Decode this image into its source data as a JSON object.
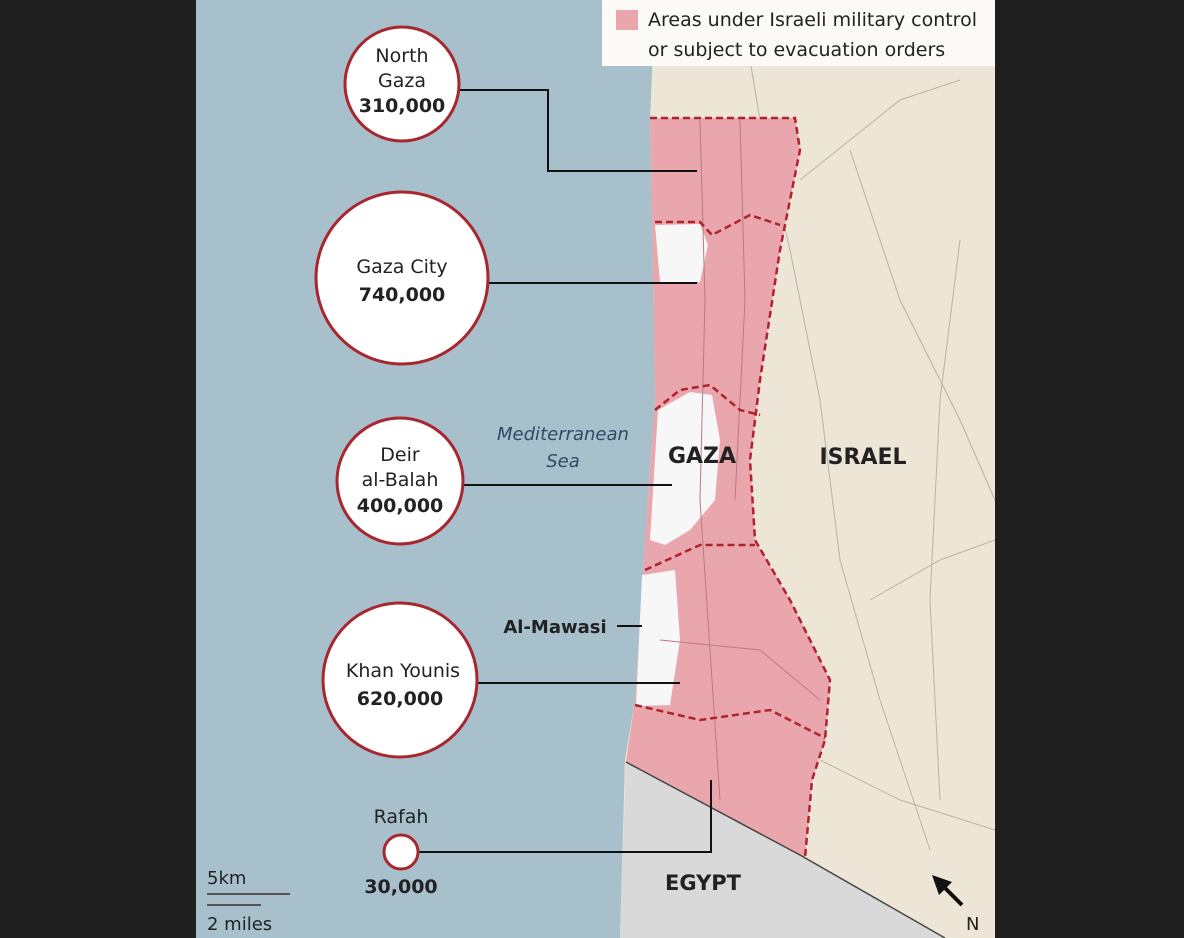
{
  "legend": {
    "label_line1": "Areas under Israeli military control",
    "label_line2": "or subject to evacuation orders",
    "swatch_color": "#e9a6ad"
  },
  "regions": [
    {
      "name": "North Gaza",
      "name_line1": "North",
      "name_line2": "Gaza",
      "population": "310,000"
    },
    {
      "name": "Gaza City",
      "population": "740,000"
    },
    {
      "name_line1": "Deir",
      "name_line2": "al-Balah",
      "population": "400,000"
    },
    {
      "name": "Khan Younis",
      "population": "620,000"
    },
    {
      "name": "Rafah",
      "population": "30,000"
    }
  ],
  "labels": {
    "sea_line1": "Mediterranean",
    "sea_line2": "Sea",
    "gaza": "GAZA",
    "israel": "ISRAEL",
    "egypt": "EGYPT",
    "al_mawasi": "Al-Mawasi",
    "north": "N"
  },
  "scale": {
    "km": "5km",
    "miles": "2 miles"
  },
  "colors": {
    "sea": "#a7c0cc",
    "land": "#ede6d6",
    "egypt": "#d9d9d9",
    "control_zone": "#e9a6ad",
    "boundary": "#b0222e",
    "circle_outline": "#a8262e"
  }
}
